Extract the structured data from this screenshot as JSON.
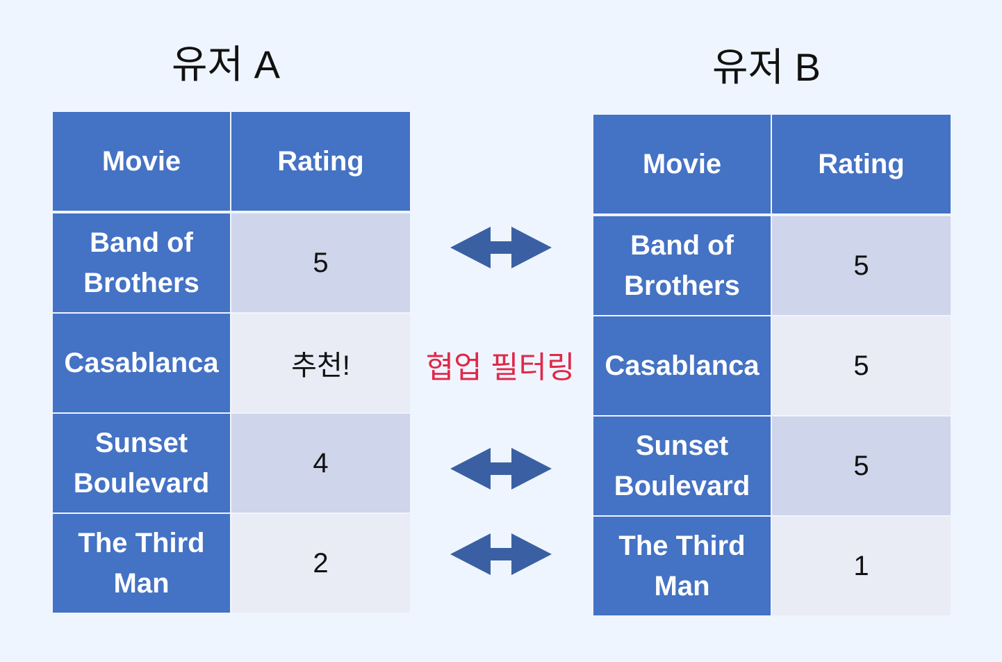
{
  "user_a": {
    "title": "유저 A",
    "headers": [
      "Movie",
      "Rating"
    ],
    "rows": [
      {
        "movie": "Band of Brothers",
        "rating": "5"
      },
      {
        "movie": "Casablanca",
        "rating": "추천!"
      },
      {
        "movie": "Sunset Boulevard",
        "rating": "4"
      },
      {
        "movie": "The Third Man",
        "rating": "2"
      }
    ]
  },
  "user_b": {
    "title": "유저 B",
    "headers": [
      "Movie",
      "Rating"
    ],
    "rows": [
      {
        "movie": "Band of Brothers",
        "rating": "5"
      },
      {
        "movie": "Casablanca",
        "rating": "5"
      },
      {
        "movie": "Sunset Boulevard",
        "rating": "5"
      },
      {
        "movie": "The Third Man",
        "rating": "1"
      }
    ]
  },
  "center_label": "협업 필터링",
  "colors": {
    "header": "#4472c4",
    "cell_odd": "#cfd5ea",
    "cell_even": "#e9ebf5",
    "arrow": "#3a60a3",
    "label": "#e0284a"
  },
  "arrow_icon": "double-headed-arrow"
}
